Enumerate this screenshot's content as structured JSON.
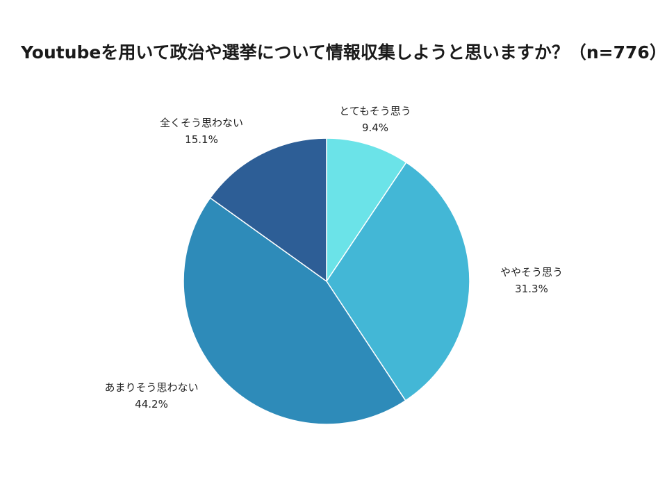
{
  "chart_data": {
    "type": "pie",
    "title": "Youtubeを用いて政治や選挙について情報収集しようと思いますか？（n=776）",
    "slices": [
      {
        "label": "とてもそう思う",
        "value": 9.4,
        "value_label": "9.4%",
        "color": "#6be3e8"
      },
      {
        "label": "ややそう思う",
        "value": 31.3,
        "value_label": "31.3%",
        "color": "#43b7d6"
      },
      {
        "label": "あまりそう思わない",
        "value": 44.2,
        "value_label": "44.2%",
        "color": "#2e8bb9"
      },
      {
        "label": "全くそう思わない",
        "value": 15.1,
        "value_label": "15.1%",
        "color": "#2d5e96"
      }
    ],
    "start_angle": "12 o'clock",
    "direction": "clockwise",
    "legend": "none"
  }
}
